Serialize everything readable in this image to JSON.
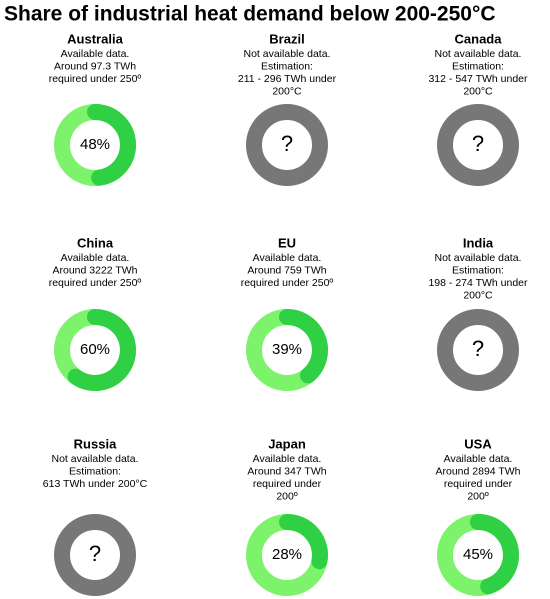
{
  "title": "Share of industrial heat demand below 200-250°C",
  "panels": [
    {
      "name": "Australia",
      "description": [
        "Available data.",
        "Around 97.3 TWh",
        "required under 250º"
      ],
      "value": 48,
      "value_label": "48%"
    },
    {
      "name": "Brazil",
      "description": [
        "Not available data.",
        "Estimation:",
        "211 - 296 TWh under",
        "200°C"
      ],
      "center": "?"
    },
    {
      "name": "Canada",
      "description": [
        "Not available data.",
        "Estimation:",
        "312 - 547 TWh under",
        "200°C"
      ],
      "center": "?"
    },
    {
      "name": "China",
      "description": [
        "Available data.",
        "Around 3222 TWh",
        "required under 250º"
      ],
      "value": 60,
      "value_label": "60%"
    },
    {
      "name": "EU",
      "description": [
        "Available data.",
        "Around 759 TWh",
        "required under 250º"
      ],
      "value": 39,
      "value_label": "39%"
    },
    {
      "name": "India",
      "description": [
        "Not available data.",
        "Estimation:",
        "198 - 274 TWh under",
        "200°C"
      ],
      "center": "?"
    },
    {
      "name": "Russia",
      "description": [
        "Not available data.",
        "Estimation:",
        "613 TWh under 200°C"
      ],
      "center": "?"
    },
    {
      "name": "Japan",
      "description": [
        "Available data.",
        "Around 347 TWh",
        "required under",
        "200º"
      ],
      "value": 28,
      "value_label": "28%"
    },
    {
      "name": "USA",
      "description": [
        "Available data.",
        "Around 2894 TWh",
        "required under",
        "200º"
      ],
      "value": 45,
      "value_label": "45%"
    }
  ]
}
